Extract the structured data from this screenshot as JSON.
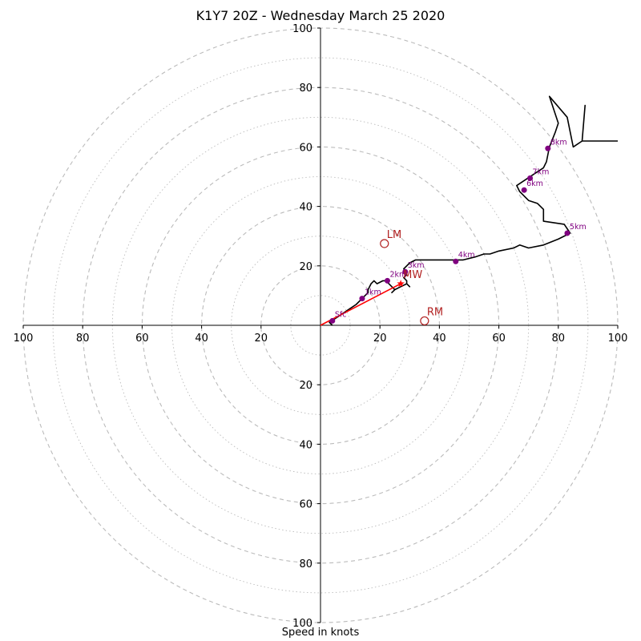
{
  "chart_data": {
    "type": "hodograph",
    "title": "K1Y7 20Z - Wednesday March 25 2020",
    "xlabel": "Speed in knots",
    "range": 100,
    "ring_major_step": 20,
    "ring_minor_step": 10,
    "tick_labels": {
      "x": [
        "100",
        "80",
        "60",
        "40",
        "20",
        "20",
        "40",
        "60",
        "80",
        "100"
      ],
      "y": [
        "100",
        "80",
        "60",
        "40",
        "20",
        "20",
        "40",
        "60",
        "80",
        "100"
      ]
    },
    "grid": true,
    "colors": {
      "profile": "#000000",
      "height_markers": "#800080",
      "motion": "#b22222",
      "shear_vector": "#ff0000",
      "grid": "#bbbbbb"
    },
    "profile_uv": [
      [
        4,
        0
      ],
      [
        3,
        1
      ],
      [
        6,
        3
      ],
      [
        9,
        5
      ],
      [
        12,
        7
      ],
      [
        14,
        9
      ],
      [
        16,
        11
      ],
      [
        16,
        12
      ],
      [
        17,
        14
      ],
      [
        18,
        15
      ],
      [
        19,
        14
      ],
      [
        21,
        15
      ],
      [
        22,
        15
      ],
      [
        23,
        14
      ],
      [
        24,
        13
      ],
      [
        25,
        12
      ],
      [
        24,
        11
      ],
      [
        25,
        12
      ],
      [
        27,
        13
      ],
      [
        29,
        14
      ],
      [
        30,
        13
      ],
      [
        29,
        14
      ],
      [
        29,
        15
      ],
      [
        28,
        16
      ],
      [
        29,
        17
      ],
      [
        29,
        18
      ],
      [
        28,
        19
      ],
      [
        29,
        20
      ],
      [
        30,
        21
      ],
      [
        32,
        22
      ],
      [
        36,
        22
      ],
      [
        40,
        22
      ],
      [
        45,
        22
      ],
      [
        48,
        22
      ],
      [
        52,
        23
      ],
      [
        55,
        24
      ],
      [
        57,
        24
      ],
      [
        60,
        25
      ],
      [
        65,
        26
      ],
      [
        67,
        27
      ],
      [
        70,
        26
      ],
      [
        75,
        27
      ],
      [
        80,
        29
      ],
      [
        84,
        31
      ],
      [
        82,
        34
      ],
      [
        75,
        35
      ],
      [
        75,
        39
      ],
      [
        74,
        40
      ],
      [
        73,
        41
      ],
      [
        70,
        42
      ],
      [
        67,
        45
      ],
      [
        66,
        47
      ],
      [
        69,
        49
      ],
      [
        72,
        51
      ],
      [
        75,
        53
      ],
      [
        76,
        55
      ],
      [
        77,
        60
      ],
      [
        79,
        65
      ],
      [
        80,
        68
      ],
      [
        79,
        71
      ],
      [
        77,
        77
      ],
      [
        83,
        70
      ],
      [
        85,
        60
      ],
      [
        88,
        62
      ],
      [
        89,
        74
      ],
      [
        88,
        62
      ],
      [
        100,
        62
      ]
    ],
    "height_markers": [
      {
        "label": "Sfc",
        "u": 4,
        "v": 1.5
      },
      {
        "label": "1km",
        "u": 14,
        "v": 9
      },
      {
        "label": "2km",
        "u": 22.5,
        "v": 15
      },
      {
        "label": "3km",
        "u": 28.5,
        "v": 18
      },
      {
        "label": "4km",
        "u": 45.5,
        "v": 21.5
      },
      {
        "label": "5km",
        "u": 83,
        "v": 31
      },
      {
        "label": "6km",
        "u": 68.5,
        "v": 45.5
      },
      {
        "label": "7km",
        "u": 70.5,
        "v": 49.5
      },
      {
        "label": "8km",
        "u": 76.5,
        "v": 59.5
      }
    ],
    "storm_motions": [
      {
        "label": "LM",
        "u": 21.5,
        "v": 27.5,
        "marker": "circle"
      },
      {
        "label": "RM",
        "u": 35,
        "v": 1.5,
        "marker": "circle"
      },
      {
        "label": "MW",
        "u": 27,
        "v": 14,
        "marker": "star"
      }
    ],
    "shear_vector": {
      "from": [
        0,
        0
      ],
      "to": [
        27,
        14
      ]
    }
  }
}
